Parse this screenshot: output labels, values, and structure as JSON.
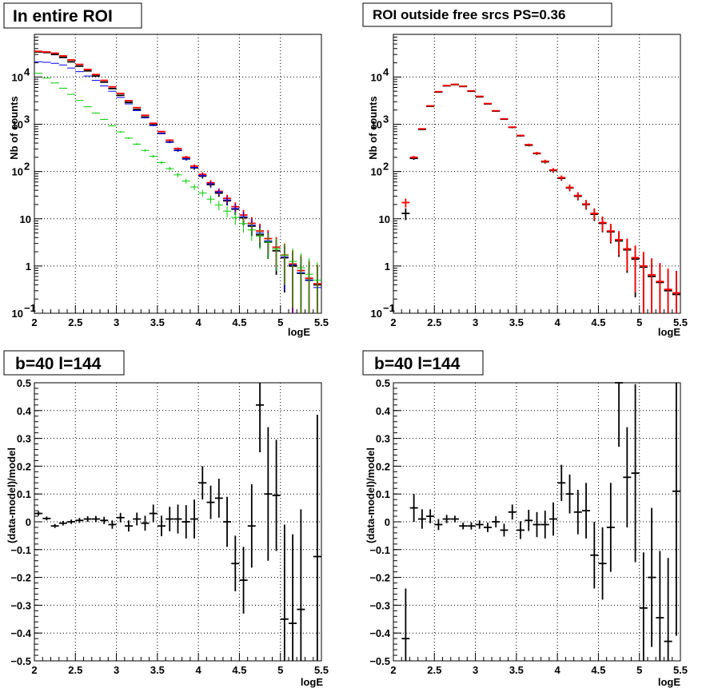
{
  "panels": [
    {
      "title": "In entire ROI",
      "xlabel": "logE",
      "ylabel": "Nb of counts",
      "chart_data": {
        "type": "scatter",
        "yscale": "log",
        "xlim": [
          2,
          5.5
        ],
        "ylim": [
          0.1,
          80000
        ],
        "xticks": [
          "2",
          "2.5",
          "3",
          "3.5",
          "4",
          "4.5",
          "5",
          "5.5"
        ],
        "yticks": [
          {
            "v": 0.1,
            "label": "10",
            "exp": "−1"
          },
          {
            "v": 1,
            "label": "1",
            "exp": ""
          },
          {
            "v": 10,
            "label": "10",
            "exp": ""
          },
          {
            "v": 100,
            "label": "10",
            "exp": "2"
          },
          {
            "v": 1000,
            "label": "10",
            "exp": "3"
          },
          {
            "v": 10000,
            "label": "10",
            "exp": "4"
          }
        ],
        "grid": true,
        "x": [
          2.05,
          2.15,
          2.25,
          2.35,
          2.45,
          2.55,
          2.65,
          2.75,
          2.85,
          2.95,
          3.05,
          3.15,
          3.25,
          3.35,
          3.45,
          3.55,
          3.65,
          3.75,
          3.85,
          3.95,
          4.05,
          4.15,
          4.25,
          4.35,
          4.45,
          4.55,
          4.65,
          4.75,
          4.85,
          4.95,
          5.05,
          5.15,
          5.25,
          5.35,
          5.45
        ],
        "series": [
          {
            "color": "#000000",
            "style": "errorbar",
            "width": 1.8,
            "values": [
              34000,
              33000,
              30000,
              26000,
              21000,
              17000,
              13500,
              10500,
              7800,
              5700,
              4100,
              2900,
              2050,
              1420,
              970,
              640,
              420,
              280,
              185,
              120,
              80,
              53,
              35,
              24,
              16,
              10.5,
              7,
              4.6,
              3.2,
              2.1,
              1.5,
              1.0,
              0.7,
              0.5,
              0.4
            ]
          },
          {
            "color": "#ff0000",
            "style": "errorbar",
            "width": 1.8,
            "values": [
              35000,
              34000,
              32000,
              28000,
              23000,
              18500,
              14500,
              11300,
              8500,
              6200,
              4500,
              3150,
              2250,
              1550,
              1050,
              700,
              460,
              305,
              200,
              130,
              87,
              58,
              38,
              27,
              18,
              12,
              8,
              5.5,
              3.8,
              2.5,
              1.7,
              1.1,
              0.8,
              0.55,
              0.42
            ]
          },
          {
            "color": "#0000ff",
            "style": "step",
            "width": 1.0,
            "values": [
              21000,
              20500,
              19500,
              18000,
              15500,
              13000,
              10500,
              8500,
              6500,
              5000,
              3700,
              2700,
              1950,
              1370,
              940,
              640,
              420,
              280,
              185,
              122,
              82,
              55,
              37,
              25,
              16.5,
              11,
              7.3,
              5,
              3.4,
              2.3,
              1.55,
              1.05,
              0.72,
              0.5,
              0.35
            ]
          },
          {
            "color": "#00cc00",
            "style": "step",
            "width": 1.0,
            "values": [
              12000,
              9500,
              7500,
              5800,
              4300,
              3200,
              2350,
              1730,
              1270,
              930,
              690,
              510,
              380,
              280,
              210,
              155,
              115,
              85,
              63,
              47,
              35,
              26,
              19.5,
              14.5,
              10.7,
              7.9,
              5.8,
              4.3,
              3.2,
              2.3,
              1.7,
              1.25,
              0.92,
              0.67,
              0.5
            ]
          }
        ]
      }
    },
    {
      "title": "ROI outside free srcs PS=0.36",
      "xlabel": "logE",
      "ylabel": "Nb of counts",
      "chart_data": {
        "type": "scatter",
        "yscale": "log",
        "xlim": [
          2,
          5.5
        ],
        "ylim": [
          0.1,
          80000
        ],
        "xticks": [
          "2",
          "2.5",
          "3",
          "3.5",
          "4",
          "4.5",
          "5",
          "5.5"
        ],
        "yticks": [
          {
            "v": 0.1,
            "label": "10",
            "exp": "−1"
          },
          {
            "v": 1,
            "label": "1",
            "exp": ""
          },
          {
            "v": 10,
            "label": "10",
            "exp": ""
          },
          {
            "v": 100,
            "label": "10",
            "exp": "2"
          },
          {
            "v": 1000,
            "label": "10",
            "exp": "3"
          },
          {
            "v": 10000,
            "label": "10",
            "exp": "4"
          }
        ],
        "grid": true,
        "x": [
          2.15,
          2.25,
          2.35,
          2.45,
          2.55,
          2.65,
          2.75,
          2.85,
          2.95,
          3.05,
          3.15,
          3.25,
          3.35,
          3.45,
          3.55,
          3.65,
          3.75,
          3.85,
          3.95,
          4.05,
          4.15,
          4.25,
          4.35,
          4.45,
          4.55,
          4.65,
          4.75,
          4.85,
          4.95,
          5.05,
          5.15,
          5.25,
          5.35,
          5.45
        ],
        "series": [
          {
            "color": "#000000",
            "style": "errorbar",
            "width": 1.8,
            "values": [
              13,
              190,
              780,
              2400,
              4800,
              6500,
              6900,
              6300,
              5000,
              3800,
              2700,
              1900,
              1280,
              860,
              570,
              360,
              240,
              160,
              105,
              72,
              45,
              30,
              20,
              12.5,
              8,
              5.3,
              3.4,
              2.2,
              1.4,
              0.95,
              0.6,
              0.45,
              0.3,
              0.25
            ]
          },
          {
            "color": "#ff0000",
            "style": "errorbar",
            "width": 1.8,
            "values": [
              22,
              200,
              800,
              2450,
              4900,
              6600,
              7000,
              6400,
              5100,
              3900,
              2750,
              1930,
              1300,
              870,
              580,
              370,
              245,
              165,
              108,
              74,
              46,
              31,
              20.5,
              13,
              8.3,
              5.5,
              3.6,
              2.3,
              1.5,
              1.0,
              0.65,
              0.47,
              0.32,
              0.27
            ]
          }
        ]
      }
    },
    {
      "title": "b=40 l=144",
      "xlabel": "logE",
      "ylabel": "(data-model)/model",
      "chart_data": {
        "type": "scatter",
        "yscale": "linear",
        "xlim": [
          2,
          5.5
        ],
        "ylim": [
          -0.5,
          0.5
        ],
        "xticks": [
          "2",
          "2.5",
          "3",
          "3.5",
          "4",
          "4.5",
          "5",
          "5.5"
        ],
        "yticks": [
          {
            "v": -0.5,
            "label": "−0.5"
          },
          {
            "v": -0.4,
            "label": "−0.4"
          },
          {
            "v": -0.3,
            "label": "−0.3"
          },
          {
            "v": -0.2,
            "label": "−0.2"
          },
          {
            "v": -0.1,
            "label": "−0.1"
          },
          {
            "v": 0,
            "label": "0"
          },
          {
            "v": 0.1,
            "label": "0.1"
          },
          {
            "v": 0.2,
            "label": "0.2"
          },
          {
            "v": 0.3,
            "label": "0.3"
          },
          {
            "v": 0.4,
            "label": "0.4"
          },
          {
            "v": 0.5,
            "label": "0.5"
          }
        ],
        "grid": true,
        "x": [
          2.05,
          2.15,
          2.25,
          2.35,
          2.45,
          2.55,
          2.65,
          2.75,
          2.85,
          2.95,
          3.05,
          3.15,
          3.25,
          3.35,
          3.45,
          3.55,
          3.65,
          3.75,
          3.85,
          3.95,
          4.05,
          4.15,
          4.25,
          4.35,
          4.45,
          4.55,
          4.65,
          4.75,
          4.85,
          4.95,
          5.05,
          5.15,
          5.25,
          5.35,
          5.45
        ],
        "series": [
          {
            "color": "#000000",
            "style": "errorbar",
            "width": 1.8,
            "values": [
              0.03,
              0.012,
              -0.015,
              -0.005,
              0.0,
              0.005,
              0.01,
              0.01,
              0.005,
              -0.01,
              0.015,
              -0.015,
              0.01,
              -0.005,
              0.03,
              -0.015,
              0.01,
              0.01,
              0.0,
              0.01,
              0.14,
              0.07,
              0.085,
              0.0,
              -0.15,
              -0.21,
              -0.015,
              0.42,
              0.1,
              0.095,
              -0.35,
              -0.365,
              -0.315,
              null,
              -0.125
            ],
            "errors": [
              0.008,
              0.007,
              0.007,
              0.008,
              0.008,
              0.009,
              0.01,
              0.011,
              0.013,
              0.015,
              0.017,
              0.02,
              0.023,
              0.027,
              0.032,
              0.037,
              0.044,
              0.052,
              0.06,
              0.07,
              0.06,
              0.06,
              0.07,
              0.09,
              0.1,
              0.12,
              0.15,
              0.17,
              0.24,
              0.2,
              0.34,
              0.32,
              0.36,
              0,
              0.51
            ]
          }
        ]
      }
    },
    {
      "title": "b=40 l=144",
      "xlabel": "logE",
      "ylabel": "(data-model)/model",
      "chart_data": {
        "type": "scatter",
        "yscale": "linear",
        "xlim": [
          2,
          5.5
        ],
        "ylim": [
          -0.5,
          0.5
        ],
        "xticks": [
          "2",
          "2.5",
          "3",
          "3.5",
          "4",
          "4.5",
          "5",
          "5.5"
        ],
        "yticks": [
          {
            "v": -0.5,
            "label": "−0.5"
          },
          {
            "v": -0.4,
            "label": "−0.4"
          },
          {
            "v": -0.3,
            "label": "−0.3"
          },
          {
            "v": -0.2,
            "label": "−0.2"
          },
          {
            "v": -0.1,
            "label": "−0.1"
          },
          {
            "v": 0,
            "label": "0"
          },
          {
            "v": 0.1,
            "label": "0.1"
          },
          {
            "v": 0.2,
            "label": "0.2"
          },
          {
            "v": 0.3,
            "label": "0.3"
          },
          {
            "v": 0.4,
            "label": "0.4"
          },
          {
            "v": 0.5,
            "label": "0.5"
          }
        ],
        "grid": true,
        "x": [
          2.15,
          2.25,
          2.35,
          2.45,
          2.55,
          2.65,
          2.75,
          2.85,
          2.95,
          3.05,
          3.15,
          3.25,
          3.35,
          3.45,
          3.55,
          3.65,
          3.75,
          3.85,
          3.95,
          4.05,
          4.15,
          4.25,
          4.35,
          4.45,
          4.55,
          4.65,
          4.75,
          4.85,
          4.95,
          5.05,
          5.15,
          5.25,
          5.35,
          5.45
        ],
        "series": [
          {
            "color": "#000000",
            "style": "errorbar",
            "width": 1.8,
            "values": [
              -0.42,
              0.05,
              0.01,
              0.02,
              -0.01,
              0.01,
              0.01,
              -0.015,
              -0.015,
              -0.01,
              -0.02,
              0.0,
              -0.03,
              0.035,
              -0.03,
              0.005,
              -0.01,
              -0.01,
              0.01,
              0.14,
              0.1,
              0.035,
              0.04,
              -0.12,
              -0.15,
              -0.02,
              0.5,
              0.16,
              0.175,
              -0.31,
              -0.2,
              -0.345,
              -0.43,
              0.11
            ],
            "errors": [
              0.18,
              0.05,
              0.035,
              0.025,
              0.02,
              0.015,
              0.012,
              0.012,
              0.013,
              0.015,
              0.017,
              0.02,
              0.023,
              0.027,
              0.032,
              0.038,
              0.045,
              0.05,
              0.06,
              0.065,
              0.07,
              0.08,
              0.1,
              0.12,
              0.13,
              0.16,
              0.23,
              0.18,
              0.32,
              0.2,
              0.25,
              0.24,
              0.3,
              0.52
            ]
          }
        ]
      }
    }
  ]
}
